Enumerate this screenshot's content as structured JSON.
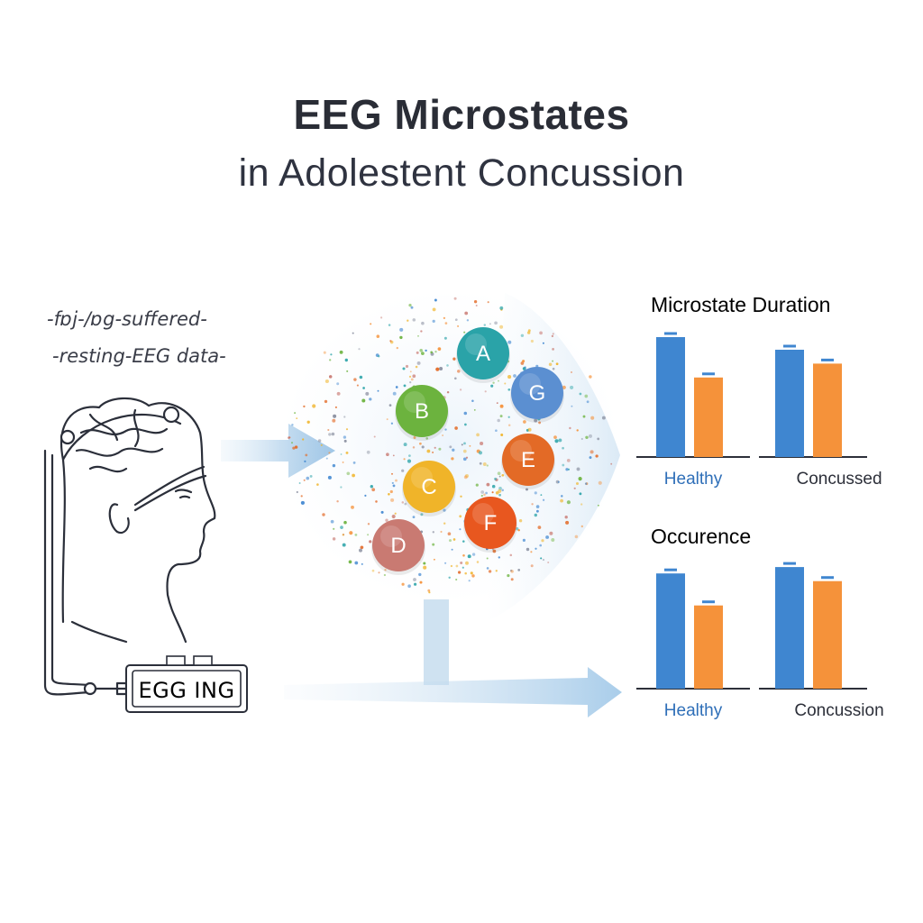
{
  "title": {
    "main": "EEG Microstates",
    "sub": "in Adolestent Concussion"
  },
  "input_note": {
    "line1": "-fɒj-/ɒg-suffered-",
    "line2": "-resting-EEG data-"
  },
  "device": {
    "label": "EGG ING"
  },
  "microstates": {
    "items": [
      {
        "label": "A",
        "color": "#2aa3a8"
      },
      {
        "label": "G",
        "color": "#5b8fd1"
      },
      {
        "label": "B",
        "color": "#6cb33e"
      },
      {
        "label": "E",
        "color": "#e36a26"
      },
      {
        "label": "C",
        "color": "#f0b429"
      },
      {
        "label": "F",
        "color": "#e8571f"
      },
      {
        "label": "D",
        "color": "#c97a72"
      }
    ]
  },
  "chart_data": [
    {
      "type": "bar",
      "title": "Microstate Duration",
      "categories": [
        "Healthy",
        "Concussed"
      ],
      "series": [
        {
          "color": "#3f86d0",
          "values": [
            0.95,
            0.85
          ]
        },
        {
          "color": "#f5923a",
          "values": [
            0.63,
            0.74
          ]
        }
      ],
      "category_colors": [
        "#2f6fb8",
        "#2d303a"
      ],
      "ylim": [
        0,
        1
      ]
    },
    {
      "type": "bar",
      "title": "Occurence",
      "categories": [
        "Healthy",
        "Concussion"
      ],
      "series": [
        {
          "color": "#3f86d0",
          "values": [
            0.9,
            0.95
          ]
        },
        {
          "color": "#f5923a",
          "values": [
            0.65,
            0.84
          ]
        }
      ],
      "category_colors": [
        "#2f6fb8",
        "#2d303a"
      ],
      "ylim": [
        0,
        1
      ]
    }
  ]
}
